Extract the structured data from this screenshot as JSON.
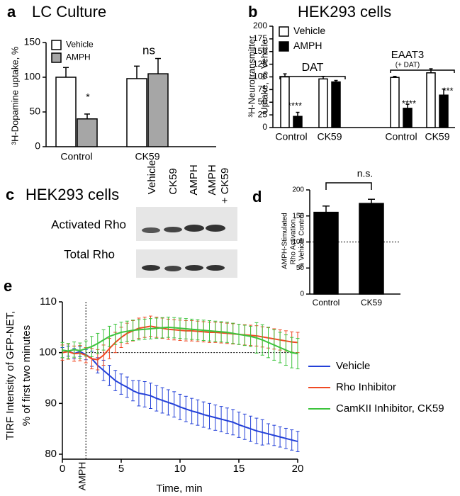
{
  "chart_data": [
    {
      "panel": "a",
      "type": "bar",
      "title": "LC Culture",
      "ylabel": [
        "³H-Dopamine uptake, %"
      ],
      "categories": [
        "Control",
        "CK59"
      ],
      "series": [
        {
          "name": "Vehicle",
          "color": "#ffffff",
          "values": [
            100,
            98
          ],
          "errors": [
            14,
            18
          ]
        },
        {
          "name": "AMPH",
          "color": "#a6a6a6",
          "values": [
            40,
            105
          ],
          "errors": [
            7,
            22
          ]
        }
      ],
      "ylim": [
        0,
        150
      ],
      "yticks": [
        0,
        50,
        100,
        150
      ],
      "annotations": [
        "*",
        "ns"
      ],
      "legend": "upper left"
    },
    {
      "panel": "b",
      "type": "bar",
      "title": "HEK293 cells",
      "ylabel": [
        "³H-Neurotransmitter",
        "Uptake, % Vehicle"
      ],
      "categories": [
        "Control",
        "CK59",
        "Control",
        "CK59"
      ],
      "series": [
        {
          "name": "Vehicle",
          "color": "#ffffff",
          "values": [
            100,
            96,
            99,
            108
          ],
          "errors": [
            6,
            5,
            2,
            8
          ]
        },
        {
          "name": "AMPH",
          "color": "#000000",
          "values": [
            22,
            90,
            38,
            64
          ],
          "errors": [
            8,
            3,
            8,
            12
          ]
        }
      ],
      "ylim": [
        0,
        200
      ],
      "yticks": [
        0,
        25,
        50,
        75,
        100,
        125,
        150,
        175,
        200
      ],
      "annotations": [
        "DAT",
        "EAAT3",
        "(+ DAT)",
        "****",
        "****",
        "***"
      ],
      "legend": "upper left"
    },
    {
      "panel": "d",
      "type": "bar",
      "ylabel": [
        "AMPH-Stimulated",
        "Rho Activation,",
        "% Vehicle Control"
      ],
      "categories": [
        "Control",
        "CK59"
      ],
      "values": [
        157,
        174
      ],
      "errors": [
        12,
        8
      ],
      "color": "#000000",
      "ylim": [
        0,
        200
      ],
      "yticks": [
        0,
        50,
        100,
        150,
        200
      ],
      "reference_line": 100,
      "annotations": [
        "n.s."
      ]
    },
    {
      "panel": "e",
      "type": "line",
      "xlabel": "Time, min",
      "ylabel": [
        "TIRF Intensity of GFP-NET,",
        "% of first two minutes"
      ],
      "x": [
        0,
        0.5,
        1,
        1.5,
        2,
        2.5,
        3,
        3.5,
        4,
        4.5,
        5,
        5.5,
        6,
        6.5,
        7,
        7.5,
        8,
        8.5,
        9,
        9.5,
        10,
        10.5,
        11,
        11.5,
        12,
        12.5,
        13,
        13.5,
        14,
        14.5,
        15,
        15.5,
        16,
        16.5,
        17,
        17.5,
        18,
        18.5,
        19,
        19.5,
        20
      ],
      "series": [
        {
          "name": "Vehicle",
          "color": "#2340d8",
          "values": [
            100,
            100.3,
            99.8,
            100.2,
            99.6,
            98.8,
            97.5,
            96.5,
            95.5,
            94.5,
            93.8,
            93.2,
            92.5,
            92,
            91.8,
            91.5,
            91,
            90.6,
            90.2,
            89.8,
            89.3,
            88.9,
            88.5,
            88.2,
            87.8,
            87.5,
            87.2,
            86.9,
            86.6,
            86.3,
            85.8,
            85.4,
            85,
            84.6,
            84.3,
            84,
            83.7,
            83.4,
            83.1,
            82.8,
            82.5
          ],
          "errors": [
            1,
            1,
            1,
            1,
            1,
            1.5,
            1.5,
            2,
            2,
            2,
            2,
            2,
            2,
            2.5,
            2.5,
            2.5,
            2.5,
            2.5,
            2.5,
            2.5,
            2.5,
            2.5,
            2.5,
            2.5,
            2.5,
            2.5,
            2.5,
            2.5,
            2.5,
            2.5,
            2.5,
            2.5,
            2.5,
            2.5,
            2.5,
            2,
            2,
            2,
            2,
            2,
            2
          ]
        },
        {
          "name": "Rho Inhibitor",
          "color": "#f04a24",
          "values": [
            100,
            100.2,
            99.8,
            99.9,
            99.5,
            98.8,
            98.6,
            99.5,
            100.8,
            102,
            103,
            103.8,
            104.3,
            104.8,
            105,
            105.2,
            105,
            104.8,
            104.6,
            104.5,
            104.4,
            104.3,
            104.3,
            104.2,
            104.1,
            104,
            104,
            103.9,
            103.8,
            103.7,
            103.6,
            103.5,
            103.4,
            103.3,
            103.1,
            102.9,
            102.7,
            102.5,
            102.3,
            102.1,
            102
          ],
          "errors": [
            1.5,
            1.5,
            1.5,
            1.5,
            1.5,
            2,
            2,
            2,
            2,
            2,
            2,
            2,
            2,
            2,
            2,
            2,
            2,
            2,
            2,
            2,
            2,
            2,
            2,
            2,
            2,
            2,
            2,
            2,
            2,
            2,
            2,
            2,
            2,
            2,
            2,
            2,
            2,
            2,
            2,
            2,
            2
          ]
        },
        {
          "name": "CamKII Inhibitor, CK59",
          "color": "#3cc43c",
          "values": [
            100.5,
            100.3,
            100.6,
            100.4,
            100.8,
            101.2,
            101.8,
            102.5,
            103.2,
            103.6,
            104,
            104.2,
            104.4,
            104.5,
            104.6,
            104.7,
            104.8,
            104.9,
            105,
            104.9,
            104.8,
            104.7,
            104.6,
            104.5,
            104.4,
            104.3,
            104.2,
            104.1,
            104,
            103.8,
            103.6,
            103.4,
            103.2,
            102.9,
            102.5,
            102,
            101.5,
            101,
            100.5,
            100,
            99.8
          ],
          "errors": [
            1.5,
            1.5,
            1.5,
            1.5,
            1.5,
            2,
            2,
            2,
            2,
            2,
            2,
            2,
            2,
            2,
            2,
            2,
            2,
            2,
            2,
            2,
            2,
            2,
            2,
            2,
            2,
            2,
            2,
            2,
            2,
            2,
            2,
            2,
            2,
            3,
            3,
            3,
            3,
            3,
            3,
            3,
            3
          ]
        }
      ],
      "xlim": [
        0,
        20
      ],
      "xticks": [
        0,
        5,
        10,
        15,
        20
      ],
      "ylim": [
        80,
        110
      ],
      "yticks": [
        80,
        90,
        100,
        110
      ],
      "reference_line": 100,
      "event": {
        "label": "AMPH",
        "x": 2
      },
      "legend": "right"
    }
  ],
  "blot": {
    "panel": "c",
    "title": "HEK293 cells",
    "lanes": [
      "Vehicle",
      "CK59",
      "AMPH",
      "AMPH",
      "+ CK59"
    ],
    "rows": [
      "Activated Rho",
      "Total Rho"
    ]
  }
}
